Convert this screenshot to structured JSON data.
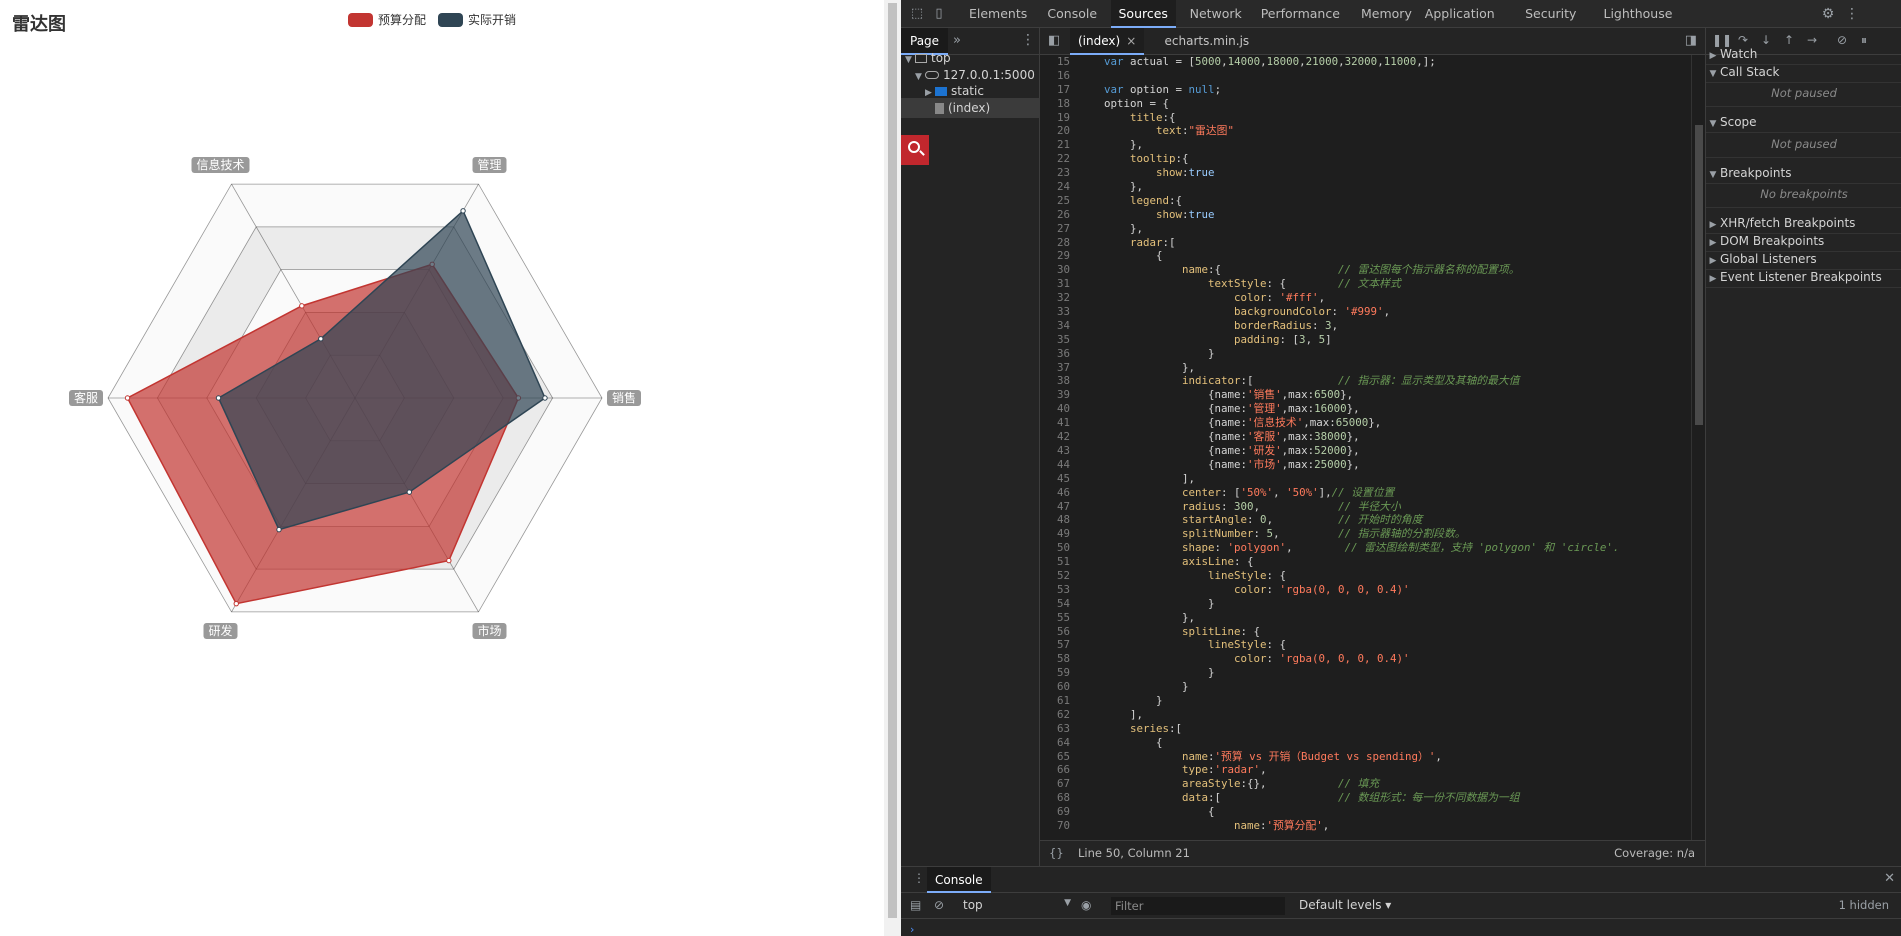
{
  "page": {
    "title": "雷达图",
    "legend": [
      {
        "name": "预算分配",
        "color": "#c23531"
      },
      {
        "name": "实际开销",
        "color": "#2f4554"
      }
    ]
  },
  "chart_data": {
    "type": "radar",
    "title": "雷达图",
    "shape": "polygon",
    "splitNumber": 5,
    "indicators": [
      {
        "name": "销售",
        "max": 6500
      },
      {
        "name": "管理",
        "max": 16000
      },
      {
        "name": "信息技术",
        "max": 65000
      },
      {
        "name": "客服",
        "max": 38000
      },
      {
        "name": "研发",
        "max": 52000
      },
      {
        "name": "市场",
        "max": 25000
      }
    ],
    "series": [
      {
        "name": "预算分配",
        "color": "#c23531",
        "values": [
          4300,
          10000,
          28000,
          35000,
          50000,
          19000
        ]
      },
      {
        "name": "实际开销",
        "color": "#2f4554",
        "values": [
          5000,
          14000,
          18000,
          21000,
          32000,
          11000
        ]
      }
    ]
  },
  "devtools": {
    "tabs": [
      "Elements",
      "Console",
      "Sources",
      "Network",
      "Performance",
      "Memory",
      "Application",
      "Security",
      "Lighthouse"
    ],
    "active_tab": "Sources",
    "navigator": {
      "tab": "Page",
      "tree": [
        {
          "label": "top",
          "indent": 0,
          "arrow": "▼",
          "icon": "frame"
        },
        {
          "label": "127.0.0.1:5000",
          "indent": 1,
          "arrow": "▼",
          "icon": "cloud"
        },
        {
          "label": "static",
          "indent": 2,
          "arrow": "▶",
          "icon": "folder"
        },
        {
          "label": "(index)",
          "indent": 2,
          "arrow": "",
          "icon": "file"
        }
      ]
    },
    "editor": {
      "tabs": [
        {
          "label": "(index)",
          "active": true
        },
        {
          "label": "echarts.min.js",
          "active": false
        }
      ],
      "status_position": "Line 50, Column 21",
      "status_coverage": "Coverage: n/a",
      "lines": [
        {
          "n": 15,
          "t": "    var actual = [5000,14000,18000,21000,32000,11000,];"
        },
        {
          "n": 16,
          "t": ""
        },
        {
          "n": 17,
          "t": "    var option = null;"
        },
        {
          "n": 18,
          "t": "    option = {"
        },
        {
          "n": 19,
          "t": "        title:{"
        },
        {
          "n": 20,
          "t": "            text:\"雷达图\""
        },
        {
          "n": 21,
          "t": "        },"
        },
        {
          "n": 22,
          "t": "        tooltip:{"
        },
        {
          "n": 23,
          "t": "            show:true"
        },
        {
          "n": 24,
          "t": "        },"
        },
        {
          "n": 25,
          "t": "        legend:{"
        },
        {
          "n": 26,
          "t": "            show:true"
        },
        {
          "n": 27,
          "t": "        },"
        },
        {
          "n": 28,
          "t": "        radar:["
        },
        {
          "n": 29,
          "t": "            {"
        },
        {
          "n": 30,
          "t": "                name:{                  // 雷达图每个指示器名称的配置项。"
        },
        {
          "n": 31,
          "t": "                    textStyle: {        // 文本样式"
        },
        {
          "n": 32,
          "t": "                        color: '#fff',"
        },
        {
          "n": 33,
          "t": "                        backgroundColor: '#999',"
        },
        {
          "n": 34,
          "t": "                        borderRadius: 3,"
        },
        {
          "n": 35,
          "t": "                        padding: [3, 5]"
        },
        {
          "n": 36,
          "t": "                    }"
        },
        {
          "n": 37,
          "t": "                },"
        },
        {
          "n": 38,
          "t": "                indicator:[             // 指示器：显示类型及其轴的最大值"
        },
        {
          "n": 39,
          "t": "                    {name:'销售',max:6500},"
        },
        {
          "n": 40,
          "t": "                    {name:'管理',max:16000},"
        },
        {
          "n": 41,
          "t": "                    {name:'信息技术',max:65000},"
        },
        {
          "n": 42,
          "t": "                    {name:'客服',max:38000},"
        },
        {
          "n": 43,
          "t": "                    {name:'研发',max:52000},"
        },
        {
          "n": 44,
          "t": "                    {name:'市场',max:25000},"
        },
        {
          "n": 45,
          "t": "                ],"
        },
        {
          "n": 46,
          "t": "                center: ['50%', '50%'],// 设置位置"
        },
        {
          "n": 47,
          "t": "                radius: 300,            // 半径大小"
        },
        {
          "n": 48,
          "t": "                startAngle: 0,          // 开始时的角度"
        },
        {
          "n": 49,
          "t": "                splitNumber: 5,         // 指示器轴的分割段数。"
        },
        {
          "n": 50,
          "t": "                shape: 'polygon',        // 雷达图绘制类型，支持 'polygon' 和 'circle'."
        },
        {
          "n": 51,
          "t": "                axisLine: {"
        },
        {
          "n": 52,
          "t": "                    lineStyle: {"
        },
        {
          "n": 53,
          "t": "                        color: 'rgba(0, 0, 0, 0.4)'"
        },
        {
          "n": 54,
          "t": "                    }"
        },
        {
          "n": 55,
          "t": "                },"
        },
        {
          "n": 56,
          "t": "                splitLine: {"
        },
        {
          "n": 57,
          "t": "                    lineStyle: {"
        },
        {
          "n": 58,
          "t": "                        color: 'rgba(0, 0, 0, 0.4)'"
        },
        {
          "n": 59,
          "t": "                    }"
        },
        {
          "n": 60,
          "t": "                }"
        },
        {
          "n": 61,
          "t": "            }"
        },
        {
          "n": 62,
          "t": "        ],"
        },
        {
          "n": 63,
          "t": "        series:["
        },
        {
          "n": 64,
          "t": "            {"
        },
        {
          "n": 65,
          "t": "                name:'预算 vs 开销（Budget vs spending）',"
        },
        {
          "n": 66,
          "t": "                type:'radar',"
        },
        {
          "n": 67,
          "t": "                areaStyle:{},           // 填充"
        },
        {
          "n": 68,
          "t": "                data:[                  // 数组形式：每一份不同数据为一组"
        },
        {
          "n": 69,
          "t": "                    {"
        },
        {
          "n": 70,
          "t": "                        name:'预算分配',"
        }
      ]
    },
    "sidebar": {
      "sections": [
        {
          "label": "Watch",
          "open": false
        },
        {
          "label": "Call Stack",
          "open": true,
          "note": "Not paused"
        },
        {
          "label": "Scope",
          "open": true,
          "note": "Not paused"
        },
        {
          "label": "Breakpoints",
          "open": true,
          "note": "No breakpoints"
        },
        {
          "label": "XHR/fetch Breakpoints",
          "open": false
        },
        {
          "label": "DOM Breakpoints",
          "open": false
        },
        {
          "label": "Global Listeners",
          "open": false
        },
        {
          "label": "Event Listener Breakpoints",
          "open": false
        }
      ]
    },
    "drawer": {
      "tab": "Console",
      "context": "top",
      "filter_placeholder": "Filter",
      "levels": "Default levels ▾",
      "hidden": "1 hidden"
    }
  }
}
